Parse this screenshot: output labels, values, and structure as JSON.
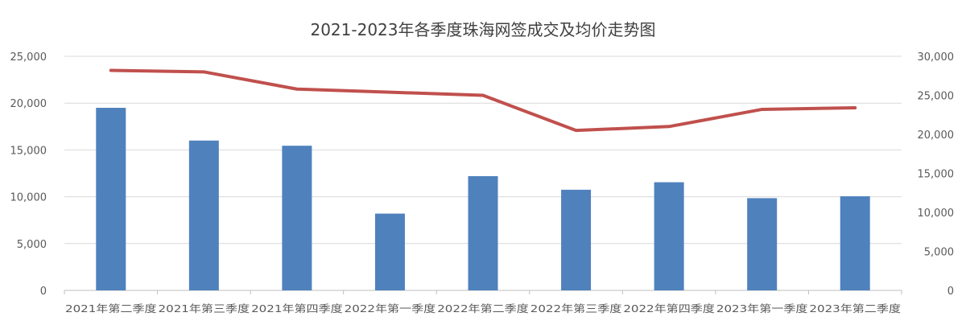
{
  "chart_data": {
    "type": "bar+line",
    "title": "2021-2023年各季度珠海网签成交及均价走势图",
    "categories": [
      "2021年第二季度",
      "2021年第三季度",
      "2021年第四季度",
      "2022年第一季度",
      "2022年第二季度",
      "2022年第三季度",
      "2022年第四季度",
      "2023年第一季度",
      "2023年第二季度"
    ],
    "series": [
      {
        "type": "bar",
        "axis": "left",
        "color": "#4F81BD",
        "values": [
          19500,
          16000,
          15450,
          8200,
          12200,
          10750,
          11550,
          9850,
          10050
        ]
      },
      {
        "type": "line",
        "axis": "right",
        "color": "#C0504D",
        "values": [
          28200,
          28000,
          25800,
          25400,
          25000,
          20500,
          21000,
          23200,
          23400
        ]
      }
    ],
    "y_left": {
      "lim": [
        0,
        25000
      ],
      "ticks": [
        "0",
        "5,000",
        "10,000",
        "15,000",
        "20,000",
        "25,000"
      ]
    },
    "y_right": {
      "lim": [
        0,
        30000
      ],
      "ticks": [
        "0",
        "5,000",
        "10,000",
        "15,000",
        "20,000",
        "25,000",
        "30,000"
      ]
    },
    "grid": true,
    "legend": "none"
  }
}
